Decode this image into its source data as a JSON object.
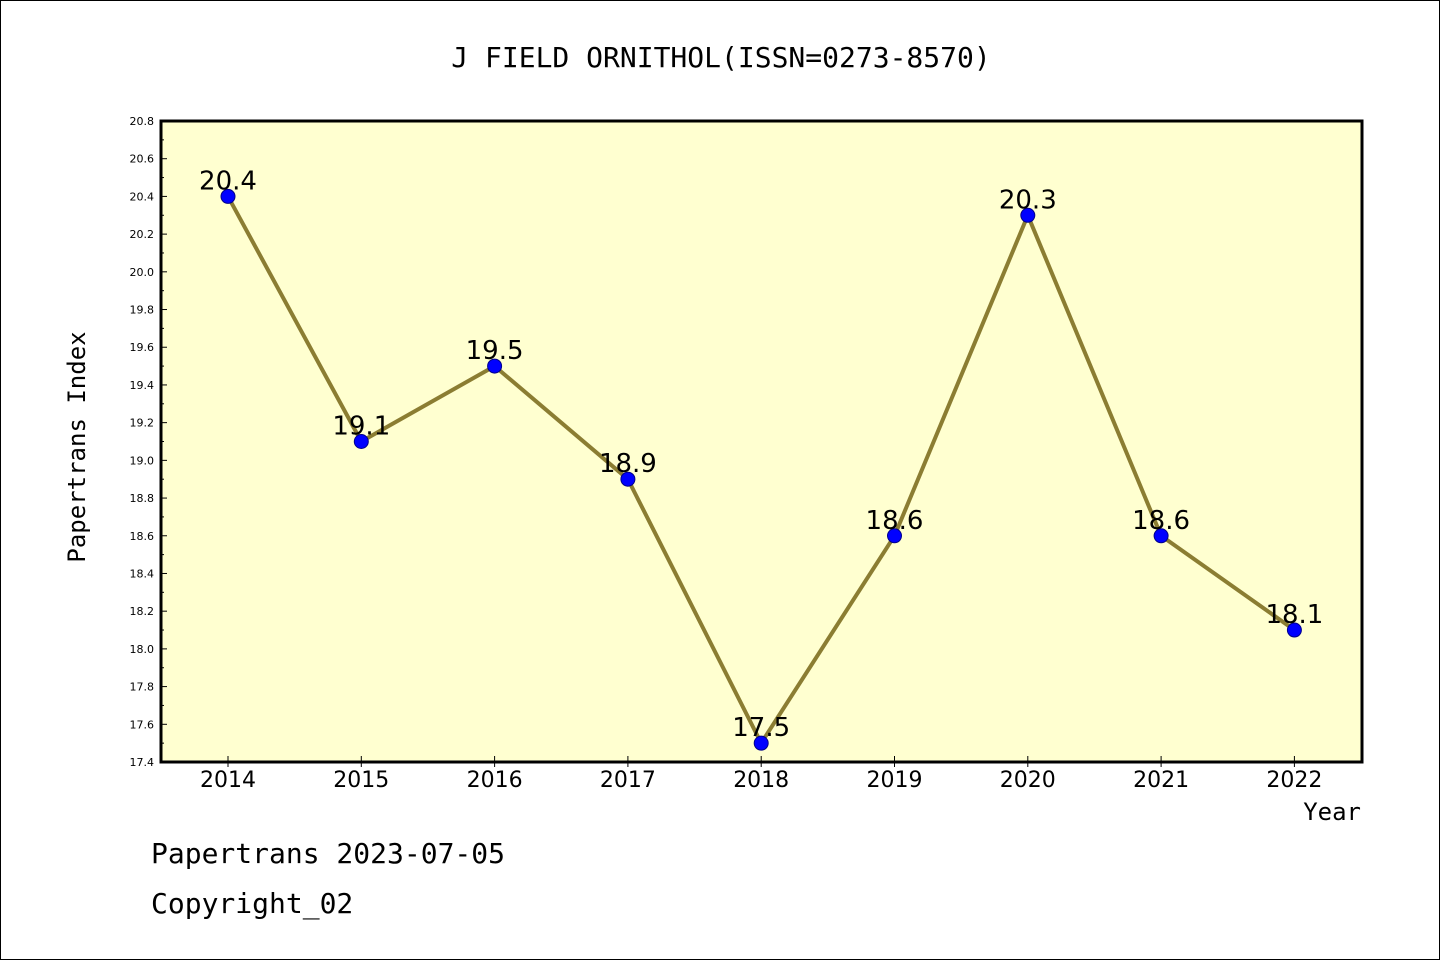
{
  "chart_data": {
    "type": "line",
    "title": "J FIELD ORNITHOL(ISSN=0273-8570)",
    "xlabel": "Year",
    "ylabel": "Papertrans Index",
    "categories": [
      "2014",
      "2015",
      "2016",
      "2017",
      "2018",
      "2019",
      "2020",
      "2021",
      "2022"
    ],
    "series": [
      {
        "values": [
          20.4,
          19.1,
          19.5,
          18.9,
          17.5,
          18.6,
          20.3,
          18.6,
          18.1
        ]
      }
    ],
    "data_labels": [
      "20.4",
      "19.1",
      "19.5",
      "18.9",
      "17.5",
      "18.6",
      "20.3",
      "18.6",
      "18.1"
    ],
    "ylim": [
      17.4,
      20.8
    ],
    "yticks": [
      "17.4",
      "17.6",
      "17.8",
      "18.0",
      "18.2",
      "18.4",
      "18.6",
      "18.8",
      "19.0",
      "19.2",
      "19.4",
      "19.6",
      "19.8",
      "20.0",
      "20.2",
      "20.4",
      "20.6",
      "20.8"
    ],
    "grid": false,
    "legend": "none",
    "colors": {
      "plot_background": "#ffffd0",
      "line": "#8b7d32",
      "marker": "#0000ff",
      "marker_edge": "#00008b"
    }
  },
  "footer": {
    "date_line": "Papertrans 2023-07-05",
    "copyright_line": "Copyright_02"
  }
}
